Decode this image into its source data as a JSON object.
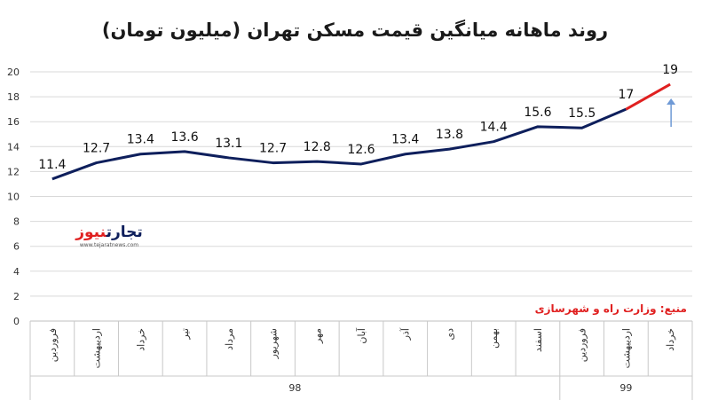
{
  "title": "روند ماهانه میانگین قیمت مسکن تهران (میلیون تومان)",
  "source": "منبع: وزارت راه و شهرسازی",
  "logo": {
    "text_main": "تجارت",
    "text_accent": "نیوز",
    "url": "www.tejaratnews.com"
  },
  "colors": {
    "line": "#0e1f5c",
    "forecast": "#e02020",
    "arrow": "#6f9ad6",
    "grid": "#d9d9d9"
  },
  "chart_data": {
    "type": "line",
    "categories": [
      "فروردین",
      "اردیبهشت",
      "خرداد",
      "تیر",
      "مرداد",
      "شهریور",
      "مهر",
      "آبان",
      "آذر",
      "دی",
      "بهمن",
      "اسفند",
      "فروردین",
      "اردیبهشت",
      "خرداد"
    ],
    "values": [
      11.4,
      12.7,
      13.4,
      13.6,
      13.1,
      12.7,
      12.8,
      12.6,
      13.4,
      13.8,
      14.4,
      15.6,
      15.5,
      17,
      19
    ],
    "value_labels": [
      "11.4",
      "12.7",
      "13.4",
      "13.6",
      "13.1",
      "12.7",
      "12.8",
      "12.6",
      "13.4",
      "13.8",
      "14.4",
      "15.6",
      "15.5",
      "17",
      "19"
    ],
    "groups": [
      {
        "label": "98",
        "count": 12
      },
      {
        "label": "99",
        "count": 3
      }
    ],
    "ylim": [
      0,
      20
    ],
    "yticks": [
      "0",
      "2",
      "4",
      "6",
      "8",
      "10",
      "12",
      "14",
      "16",
      "18",
      "20"
    ],
    "forecast_segment_from_index": 13,
    "grid": true,
    "title": "روند ماهانه میانگین قیمت مسکن تهران (میلیون تومان)"
  }
}
